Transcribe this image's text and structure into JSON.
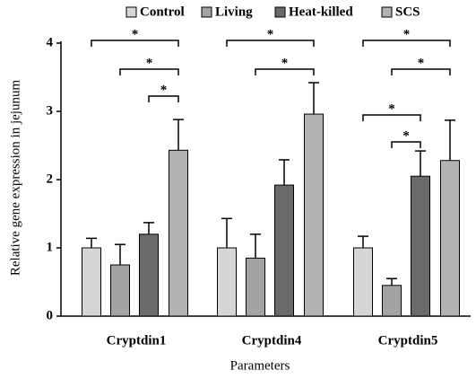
{
  "chart_data": {
    "type": "bar",
    "x_label": "Parameters",
    "y_label": "Relative gene expression in jejunum",
    "categories": [
      "Cryptdin1",
      "Cryptdin4",
      "Cryptdin5"
    ],
    "series": [
      {
        "name": "Control",
        "color": "#d6d6d6",
        "values": [
          1.0,
          1.0,
          1.0
        ],
        "errors": [
          0.14,
          0.43,
          0.17
        ]
      },
      {
        "name": "Living",
        "color": "#a3a3a3",
        "values": [
          0.75,
          0.85,
          0.45
        ],
        "errors": [
          0.3,
          0.35,
          0.1
        ]
      },
      {
        "name": "Heat-killed",
        "color": "#6a6a6a",
        "values": [
          1.2,
          1.92,
          2.05
        ],
        "errors": [
          0.17,
          0.37,
          0.37
        ]
      },
      {
        "name": "SCS",
        "color": "#b2b2b2",
        "values": [
          2.43,
          2.96,
          2.28
        ],
        "errors": [
          0.45,
          0.46,
          0.59
        ]
      }
    ],
    "ylim": [
      0,
      4
    ],
    "yticks": [
      0,
      1,
      2,
      3,
      4
    ],
    "legend": "top",
    "significance": [
      {
        "category": 0,
        "from": 0,
        "to": 3,
        "label": "*"
      },
      {
        "category": 0,
        "from": 1,
        "to": 3,
        "label": "*"
      },
      {
        "category": 0,
        "from": 2,
        "to": 3,
        "label": "*"
      },
      {
        "category": 1,
        "from": 0,
        "to": 3,
        "label": "*"
      },
      {
        "category": 1,
        "from": 1,
        "to": 3,
        "label": "*"
      },
      {
        "category": 2,
        "from": 0,
        "to": 3,
        "label": "*"
      },
      {
        "category": 2,
        "from": 1,
        "to": 3,
        "label": "*"
      },
      {
        "category": 2,
        "from": 0,
        "to": 2,
        "label": "*"
      },
      {
        "category": 2,
        "from": 1,
        "to": 2,
        "label": "*"
      }
    ]
  }
}
